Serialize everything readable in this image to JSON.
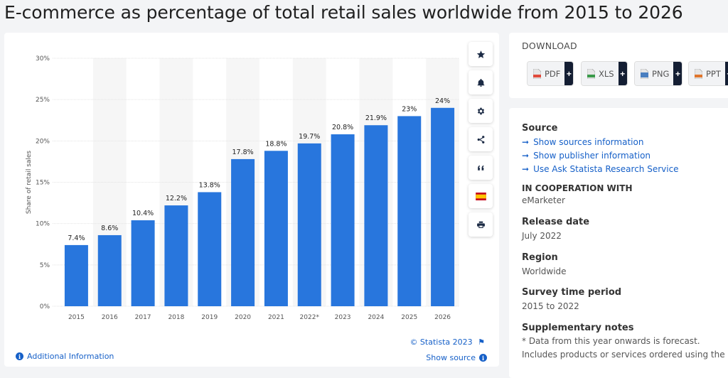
{
  "page": {
    "title": "E-commerce as percentage of total retail sales worldwide from 2015 to 2026"
  },
  "chart_data": {
    "type": "bar",
    "categories": [
      "2015",
      "2016",
      "2017",
      "2018",
      "2019",
      "2020",
      "2021",
      "2022*",
      "2023",
      "2024",
      "2025",
      "2026"
    ],
    "values": [
      7.4,
      8.6,
      10.4,
      12.2,
      13.8,
      17.8,
      18.8,
      19.7,
      20.8,
      21.9,
      23,
      24
    ],
    "value_labels": [
      "7.4%",
      "8.6%",
      "10.4%",
      "12.2%",
      "13.8%",
      "17.8%",
      "18.8%",
      "19.7%",
      "20.8%",
      "21.9%",
      "23%",
      "24%"
    ],
    "ylabel": "Share of retail sales",
    "xlabel": "",
    "ylim": [
      0,
      30
    ],
    "y_ticks": [
      0,
      5,
      10,
      15,
      20,
      25,
      30
    ],
    "y_tick_labels": [
      "0%",
      "5%",
      "10%",
      "15%",
      "20%",
      "25%",
      "30%"
    ],
    "bar_color": "#2876dd",
    "grid": true
  },
  "toolbar": {
    "items": [
      {
        "icon": "star-icon",
        "name": "favorite-button"
      },
      {
        "icon": "bell-icon",
        "name": "notification-button"
      },
      {
        "icon": "gear-icon",
        "name": "settings-button"
      },
      {
        "icon": "share-icon",
        "name": "share-button"
      },
      {
        "icon": "quote-icon",
        "name": "cite-button"
      },
      {
        "icon": "spain-flag-icon",
        "name": "language-button"
      },
      {
        "icon": "print-icon",
        "name": "print-button"
      }
    ]
  },
  "chart_footer": {
    "credit": "© Statista 2023",
    "show_source": "Show source",
    "additional_info": "Additional Information"
  },
  "download": {
    "title": "DOWNLOAD",
    "buttons": [
      {
        "label": "PDF",
        "color": "#e04b3c"
      },
      {
        "label": "XLS",
        "color": "#3b9a4a"
      },
      {
        "label": "PNG",
        "color": "#4a7fc0"
      },
      {
        "label": "PPT",
        "color": "#e0762c"
      }
    ],
    "plus": "+"
  },
  "info": {
    "source_heading": "Source",
    "source_links": [
      "Show sources information",
      "Show publisher information",
      "Use Ask Statista Research Service"
    ],
    "link_arrow": "➞",
    "cooperation_heading": "IN COOPERATION WITH",
    "cooperation_value": "eMarketer",
    "release_heading": "Release date",
    "release_value": "July 2022",
    "region_heading": "Region",
    "region_value": "Worldwide",
    "survey_heading": "Survey time period",
    "survey_value": "2015 to 2022",
    "notes_heading": "Supplementary notes",
    "notes_line1": "* Data from this year onwards is forecast.",
    "notes_line2": "Includes products or services ordered using the"
  }
}
